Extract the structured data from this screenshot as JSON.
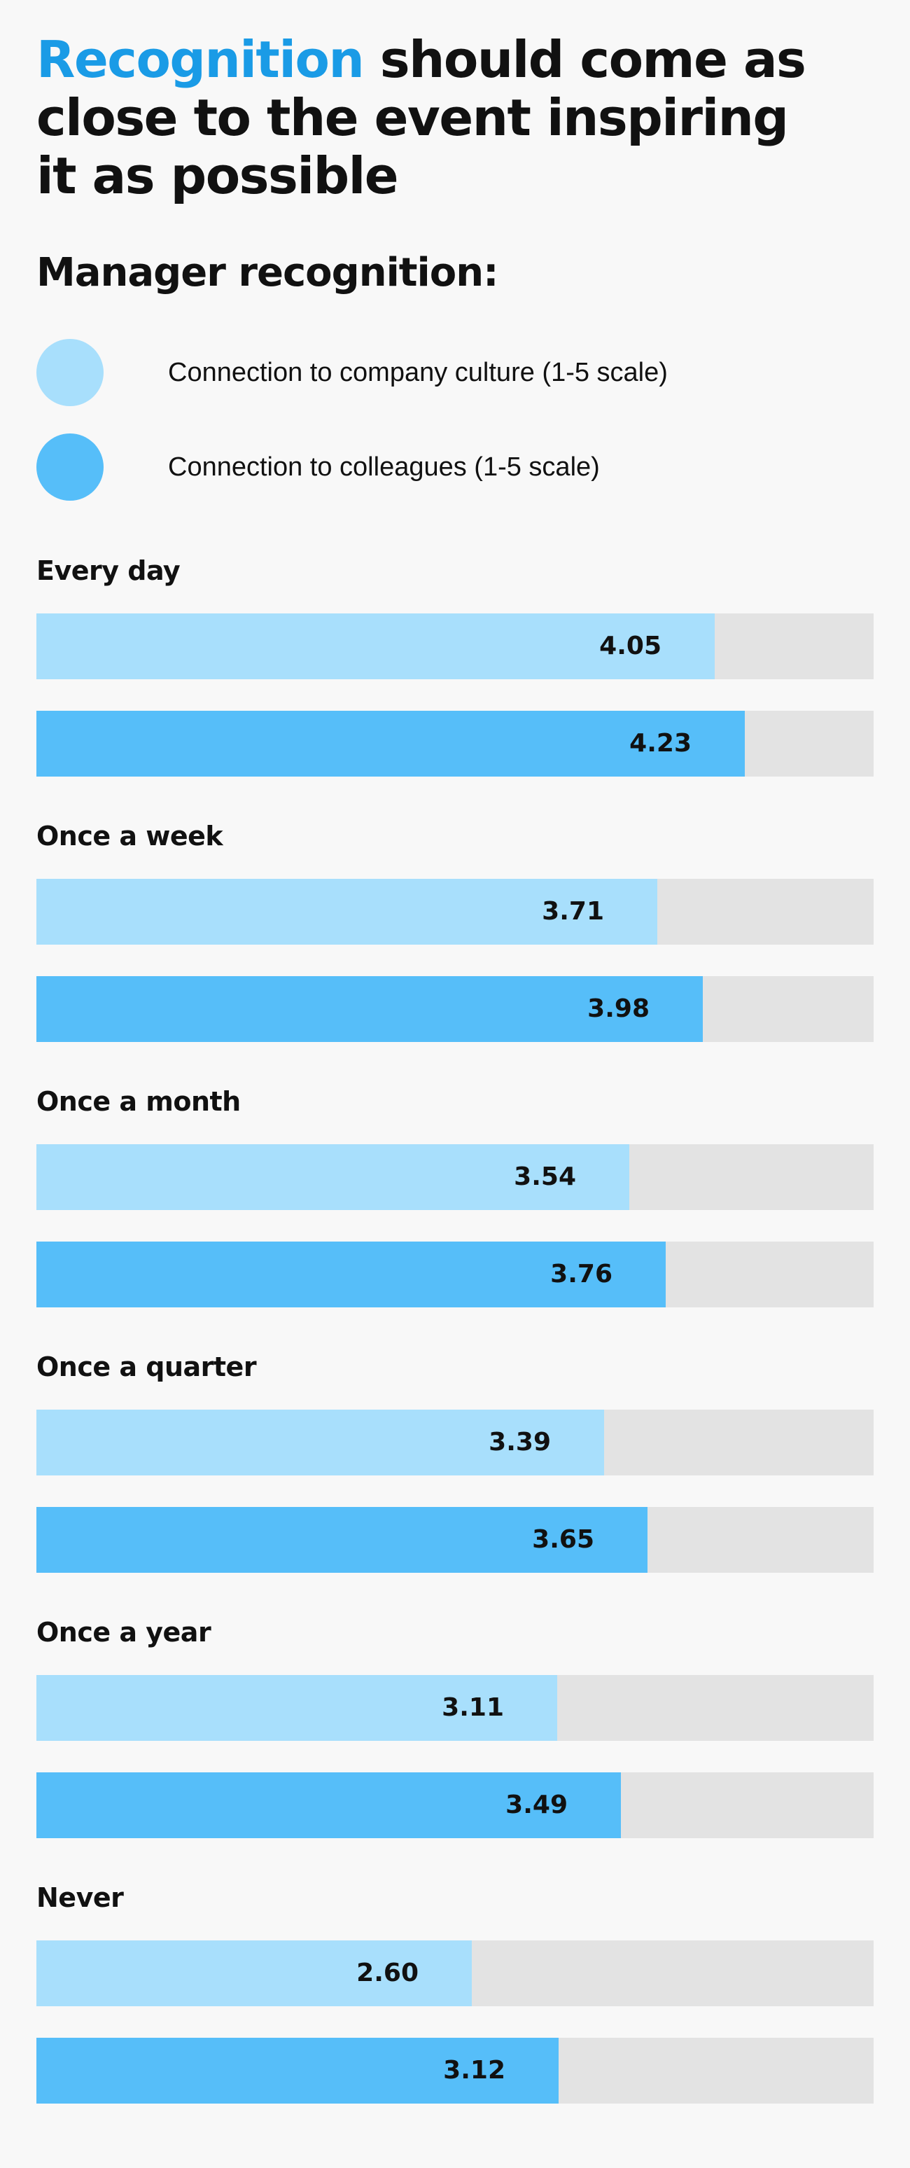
{
  "headline": {
    "accent": "Recognition",
    "rest": " should come as close to the event inspiring it as possible"
  },
  "subtitle": "Manager recognition:",
  "colors": {
    "culture": "#a8dffc",
    "colleagues": "#56bef9",
    "track": "#e3e3e3",
    "accent": "#1a9be6"
  },
  "chart_data": {
    "type": "bar",
    "orientation": "horizontal",
    "xlim": [
      0,
      5
    ],
    "categories": [
      "Every day",
      "Once a week",
      "Once a month",
      "Once a quarter",
      "Once a year",
      "Never"
    ],
    "series": [
      {
        "name": "Connection to company culture (1-5 scale)",
        "color": "#a8dffc",
        "values": [
          4.05,
          3.71,
          3.54,
          3.39,
          3.11,
          2.6
        ],
        "labels": [
          "4.05",
          "3.71",
          "3.54",
          "3.39",
          "3.11",
          "2.60"
        ]
      },
      {
        "name": "Connection to colleagues (1-5 scale)",
        "color": "#56bef9",
        "values": [
          4.23,
          3.98,
          3.76,
          3.65,
          3.49,
          3.12
        ],
        "labels": [
          "4.23",
          "3.98",
          "3.76",
          "3.65",
          "3.49",
          "3.12"
        ]
      }
    ]
  }
}
